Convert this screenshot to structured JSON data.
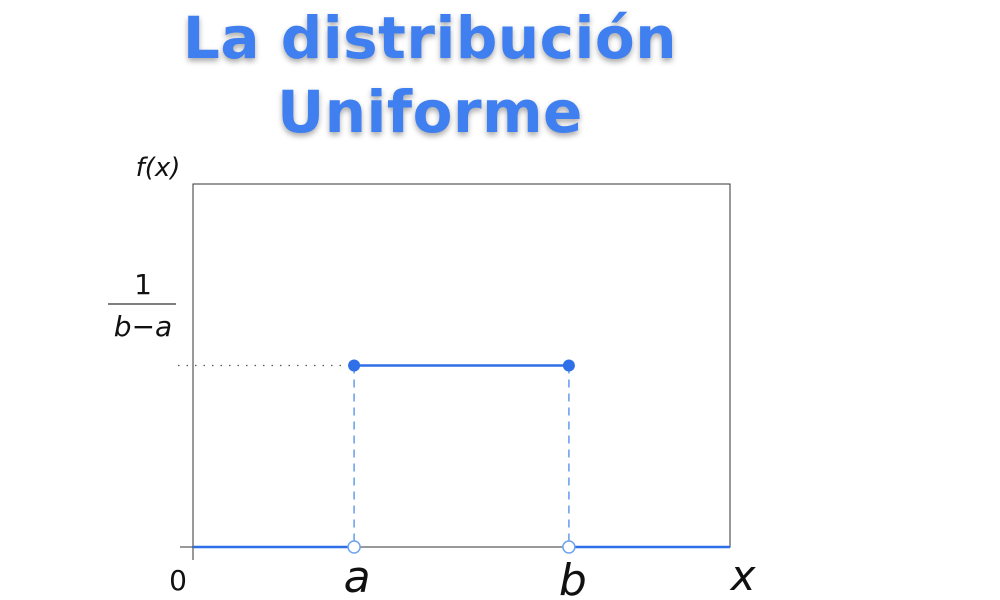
{
  "title": {
    "line1": "La distribución",
    "line2": "Uniforme"
  },
  "colors": {
    "title": "#3f7ff0",
    "series": "#2f6fe8",
    "dashed": "#6ea2ef",
    "frame": "#333333"
  },
  "chart_data": {
    "type": "line",
    "title": "La distribución Uniforme",
    "ylabel": "f(x)",
    "xlabel": "x",
    "origin_label": "0",
    "x_ticks": [
      {
        "label": "a",
        "value": 0.3
      },
      {
        "label": "b",
        "value": 0.7
      }
    ],
    "y_ticks": [
      {
        "numerator": "1",
        "denominator": "b−a",
        "value": 0.5
      }
    ],
    "xlim": [
      0,
      1
    ],
    "ylim": [
      0,
      1
    ],
    "series": [
      {
        "segments": [
          {
            "x": [
              0,
              0.3
            ],
            "y": [
              0,
              0
            ],
            "endpoint_open": [
              false,
              true
            ]
          },
          {
            "x": [
              0.3,
              0.7
            ],
            "y": [
              0.5,
              0.5
            ],
            "endpoint_filled": [
              true,
              true
            ]
          },
          {
            "x": [
              0.7,
              1
            ],
            "y": [
              0,
              0
            ],
            "endpoint_open": [
              true,
              false
            ]
          }
        ]
      }
    ],
    "grid": false,
    "legend": "none"
  }
}
